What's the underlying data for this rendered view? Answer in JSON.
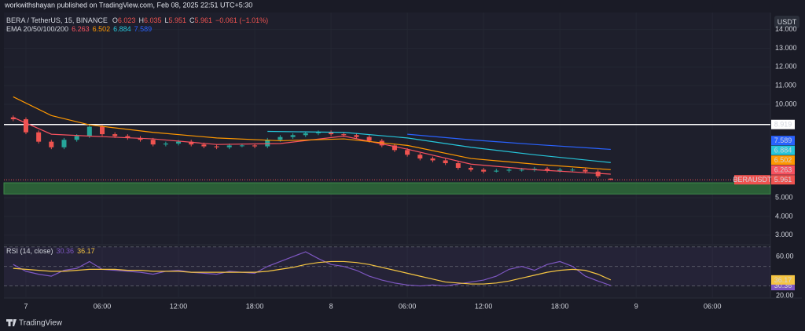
{
  "header": "workwithshayan published on TradingView.com, Feb 08, 2025 22:51 UTC+5:30",
  "footer": "TradingView",
  "currency": "USDT",
  "chart_data": [
    {
      "type": "candlestick",
      "title": "BERA / TetherUS, 15, BINANCE",
      "ohlc_prefixes": [
        "O",
        "H",
        "L",
        "C"
      ],
      "change": "−0.061 (−1.01%)",
      "symbol_label": "BERAUSDT",
      "indicator": "EMA 20/50/100/200",
      "x": [
        -1,
        0,
        1,
        2,
        3,
        4,
        5,
        6,
        7,
        8,
        9,
        10,
        11,
        12,
        13,
        14,
        15,
        16,
        17,
        18,
        19,
        20,
        21,
        22,
        23,
        24,
        25,
        26,
        27,
        28,
        29,
        30,
        31,
        32,
        33,
        34,
        35,
        36,
        37,
        38,
        39,
        40,
        41,
        42,
        43,
        44,
        45,
        46
      ],
      "open": [
        9.3,
        9.2,
        8.5,
        8.0,
        7.7,
        8.1,
        8.3,
        8.8,
        8.4,
        8.3,
        8.2,
        8.1,
        7.85,
        7.9,
        8.0,
        7.85,
        7.75,
        7.7,
        7.8,
        7.8,
        7.75,
        8.1,
        8.25,
        8.35,
        8.45,
        8.5,
        8.4,
        8.35,
        8.25,
        8.05,
        7.8,
        7.55,
        7.3,
        7.1,
        7.0,
        6.85,
        6.6,
        6.5,
        6.4,
        6.45,
        6.5,
        6.5,
        6.55,
        6.45,
        6.5,
        6.5,
        6.4,
        6.023
      ],
      "high": [
        9.4,
        9.3,
        8.6,
        8.1,
        8.2,
        8.4,
        8.9,
        8.9,
        8.5,
        8.4,
        8.3,
        8.2,
        8.0,
        8.1,
        8.1,
        7.95,
        7.85,
        7.9,
        7.9,
        7.9,
        8.2,
        8.35,
        8.45,
        8.55,
        8.6,
        8.6,
        8.5,
        8.45,
        8.35,
        8.15,
        7.9,
        7.65,
        7.4,
        7.2,
        7.1,
        6.95,
        6.7,
        6.6,
        6.55,
        6.6,
        6.6,
        6.65,
        6.65,
        6.6,
        6.6,
        6.6,
        6.5,
        6.035
      ],
      "low": [
        9.1,
        8.4,
        7.9,
        7.6,
        7.6,
        8.0,
        8.2,
        8.3,
        8.2,
        8.1,
        8.0,
        7.75,
        7.75,
        7.8,
        7.75,
        7.65,
        7.6,
        7.6,
        7.7,
        7.65,
        7.65,
        8.0,
        8.15,
        8.25,
        8.35,
        8.3,
        8.25,
        8.15,
        7.95,
        7.7,
        7.45,
        7.2,
        7.0,
        6.9,
        6.75,
        6.5,
        6.4,
        6.3,
        6.35,
        6.35,
        6.4,
        6.4,
        6.35,
        6.35,
        6.4,
        6.3,
        6.05,
        5.951
      ],
      "close": [
        9.2,
        8.5,
        8.0,
        7.7,
        8.1,
        8.3,
        8.8,
        8.4,
        8.3,
        8.2,
        8.1,
        7.85,
        7.9,
        8.0,
        7.85,
        7.75,
        7.7,
        7.8,
        7.8,
        7.75,
        8.1,
        8.25,
        8.35,
        8.45,
        8.5,
        8.4,
        8.35,
        8.25,
        8.05,
        7.8,
        7.55,
        7.3,
        7.1,
        7.0,
        6.85,
        6.6,
        6.5,
        6.4,
        6.45,
        6.5,
        6.5,
        6.55,
        6.45,
        6.5,
        6.5,
        6.4,
        6.15,
        5.961
      ],
      "up_color": "#26a69a",
      "down_color": "#ef5350",
      "series": [
        {
          "name": "EMA 20",
          "color": "#f7525f",
          "x": [
            -1,
            2,
            5,
            10,
            15,
            20,
            25,
            30,
            35,
            40,
            46
          ],
          "values": [
            9.3,
            8.4,
            8.3,
            8.15,
            7.85,
            7.9,
            8.3,
            7.6,
            6.8,
            6.5,
            6.263
          ]
        },
        {
          "name": "EMA 50",
          "color": "#ff9800",
          "x": [
            -1,
            2,
            5,
            10,
            15,
            20,
            25,
            30,
            35,
            40,
            46
          ],
          "values": [
            10.4,
            9.4,
            8.9,
            8.5,
            8.2,
            8.05,
            8.15,
            7.8,
            7.1,
            6.8,
            6.502
          ]
        },
        {
          "name": "EMA 100",
          "color": "#26c6da",
          "x": [
            19,
            25,
            30,
            35,
            40,
            46
          ],
          "values": [
            8.55,
            8.5,
            8.2,
            7.7,
            7.3,
            6.884
          ]
        },
        {
          "name": "EMA 200",
          "color": "#2962ff",
          "x": [
            30,
            35,
            40,
            46
          ],
          "values": [
            8.4,
            8.1,
            7.85,
            7.589
          ]
        }
      ],
      "levels": [
        8.919
      ],
      "zone": [
        5.2,
        5.8
      ],
      "xlim": [
        -1.73,
        58.56
      ],
      "xticks": [
        {
          "value": 0,
          "label": "7"
        },
        {
          "value": 6,
          "label": "06:00"
        },
        {
          "value": 12,
          "label": "12:00"
        },
        {
          "value": 18,
          "label": "18:00"
        },
        {
          "value": 24,
          "label": "8"
        },
        {
          "value": 30,
          "label": "06:00"
        },
        {
          "value": 36,
          "label": "12:00"
        },
        {
          "value": 42,
          "label": "18:00"
        },
        {
          "value": 48,
          "label": "9"
        },
        {
          "value": 54,
          "label": "06:00"
        }
      ],
      "ylim": [
        2.57,
        14.91
      ],
      "yticks": [
        {
          "value": 3,
          "label": "3.000"
        },
        {
          "value": 4,
          "label": "4.000"
        },
        {
          "value": 5,
          "label": "5.000"
        },
        {
          "value": 10,
          "label": "10.000"
        },
        {
          "value": 11,
          "label": "11.000"
        },
        {
          "value": 12,
          "label": "12.000"
        },
        {
          "value": 13,
          "label": "13.000"
        },
        {
          "value": 14,
          "label": "14.000"
        }
      ]
    },
    {
      "type": "line",
      "title": "RSI (14, close)",
      "x": [
        -1,
        0,
        1,
        2,
        3,
        4,
        5,
        6,
        7,
        8,
        9,
        10,
        11,
        12,
        13,
        14,
        15,
        16,
        17,
        18,
        19,
        20,
        21,
        22,
        23,
        24,
        25,
        26,
        27,
        28,
        29,
        30,
        31,
        32,
        33,
        34,
        35,
        36,
        37,
        38,
        39,
        40,
        41,
        42,
        43,
        44,
        45,
        46
      ],
      "series": [
        {
          "name": "RSI",
          "color": "#7e57c2",
          "values": [
            52,
            45,
            42,
            40,
            46,
            48,
            55,
            47,
            46,
            45,
            44,
            42,
            45,
            46,
            44,
            43,
            42,
            45,
            44,
            43,
            50,
            55,
            60,
            65,
            58,
            52,
            50,
            46,
            40,
            36,
            33,
            31,
            30,
            31,
            30,
            32,
            34,
            36,
            40,
            47,
            50,
            46,
            52,
            55,
            50,
            40,
            35,
            30.36
          ]
        },
        {
          "name": "RSI MA",
          "color": "#f5c542",
          "values": [
            48,
            47,
            46,
            45,
            45,
            46,
            47,
            47,
            47,
            46,
            46,
            45,
            45,
            45,
            44,
            44,
            44,
            44,
            44,
            44,
            45,
            47,
            49,
            52,
            54,
            55,
            55,
            54,
            52,
            49,
            46,
            43,
            40,
            37,
            34,
            33,
            32,
            32,
            33,
            35,
            38,
            41,
            44,
            46,
            47,
            46,
            42,
            36.17
          ]
        }
      ],
      "levels": [
        70,
        50,
        30
      ],
      "ylim": [
        17.6,
        70.6
      ],
      "yticks": [
        {
          "value": 20,
          "label": "20.00"
        },
        {
          "value": 60,
          "label": "60.00"
        }
      ]
    }
  ]
}
